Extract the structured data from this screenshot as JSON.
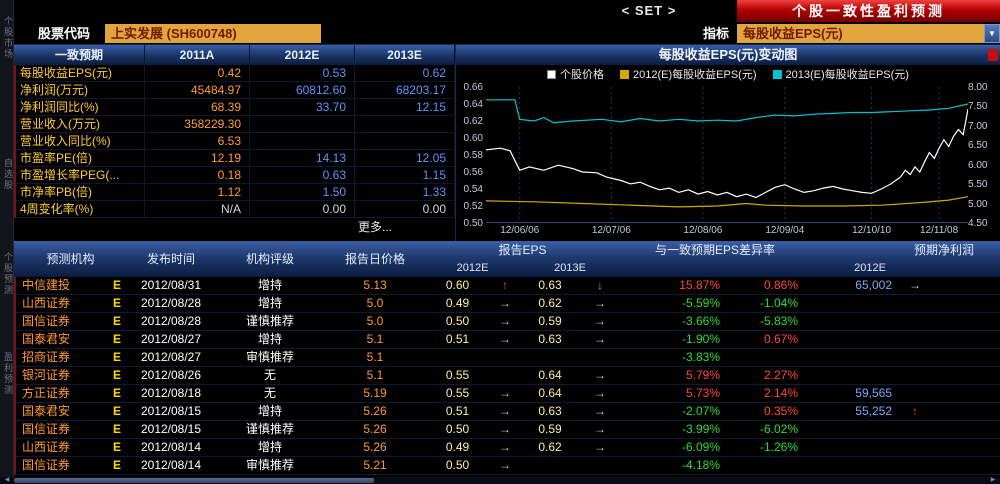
{
  "app": {
    "set_button": "< SET >",
    "banner_title": "个股一致性盈利预测"
  },
  "toolbar": {
    "stock_code_label": "股票代码",
    "stock_value": "上实发展 (SH600748)",
    "indicator_label": "指标",
    "indicator_value": "每股收益EPS(元)"
  },
  "sidebar": {
    "tabs": [
      "个股市场",
      "自选股",
      "个股预测",
      "盈利预测"
    ]
  },
  "consensus_table": {
    "title": "一致预期",
    "columns": [
      "2011A",
      "2012E",
      "2013E"
    ],
    "rows": [
      {
        "label": "每股收益EPS(元)",
        "a": "0.42",
        "e12": "0.53",
        "e13": "0.62"
      },
      {
        "label": "净利润(万元)",
        "a": "45484.97",
        "e12": "60812.60",
        "e13": "68203.17"
      },
      {
        "label": "净利润同比(%)",
        "a": "68.39",
        "e12": "33.70",
        "e13": "12.15"
      },
      {
        "label": "营业收入(万元)",
        "a": "358229.30",
        "e12": "",
        "e13": ""
      },
      {
        "label": "营业收入同比(%)",
        "a": "6.53",
        "e12": "",
        "e13": ""
      },
      {
        "label": "市盈率PE(倍)",
        "a": "12.19",
        "e12": "14.13",
        "e13": "12.05"
      },
      {
        "label": "市盈增长率PEG(...",
        "a": "0.18",
        "e12": "0.63",
        "e13": "1.15"
      },
      {
        "label": "市净率PB(倍)",
        "a": "1.12",
        "e12": "1.50",
        "e13": "1.33"
      },
      {
        "label": "4周变化率(%)",
        "a": "N/A",
        "e12": "0.00",
        "e13": "0.00"
      }
    ],
    "more_link": "更多..."
  },
  "chart": {
    "type": "line",
    "title": "每股收益EPS(元)变动图",
    "legend": [
      {
        "label": "个股价格",
        "color": "#ffffff"
      },
      {
        "label": "2012(E)每股收益EPS(元)",
        "color": "#d4a800"
      },
      {
        "label": "2013(E)每股收益EPS(元)",
        "color": "#00c4d4"
      }
    ],
    "y_left": [
      "0.66",
      "0.64",
      "0.62",
      "0.60",
      "0.58",
      "0.56",
      "0.54",
      "0.52",
      "0.50"
    ],
    "y_right": [
      "8.00",
      "7.50",
      "7.00",
      "6.50",
      "6.00",
      "5.50",
      "5.00",
      "4.50"
    ],
    "x_labels": [
      "12/06/06",
      "12/07/06",
      "12/08/06",
      "12/09/04",
      "12/10/10",
      "12/11/08"
    ],
    "series": [
      {
        "name": "2012(E)每股收益EPS(元)",
        "color": "#d4a800",
        "points": [
          [
            0,
            0.526
          ],
          [
            10,
            0.525
          ],
          [
            20,
            0.523
          ],
          [
            30,
            0.521
          ],
          [
            40,
            0.519
          ],
          [
            48,
            0.52
          ],
          [
            54,
            0.523
          ],
          [
            58,
            0.521
          ],
          [
            66,
            0.52
          ],
          [
            74,
            0.52
          ],
          [
            82,
            0.521
          ],
          [
            90,
            0.524
          ],
          [
            96,
            0.527
          ],
          [
            100,
            0.531
          ]
        ]
      },
      {
        "name": "2013(E)每股收益EPS(元)",
        "color": "#00c4d4",
        "points": [
          [
            0,
            0.645
          ],
          [
            6,
            0.645
          ],
          [
            7,
            0.622
          ],
          [
            10,
            0.62
          ],
          [
            12,
            0.624
          ],
          [
            14,
            0.618
          ],
          [
            18,
            0.62
          ],
          [
            24,
            0.622
          ],
          [
            28,
            0.619
          ],
          [
            32,
            0.623
          ],
          [
            36,
            0.62
          ],
          [
            40,
            0.622
          ],
          [
            44,
            0.62
          ],
          [
            48,
            0.621
          ],
          [
            52,
            0.62
          ],
          [
            56,
            0.624
          ],
          [
            60,
            0.627
          ],
          [
            64,
            0.626
          ],
          [
            68,
            0.628
          ],
          [
            72,
            0.629
          ],
          [
            76,
            0.63
          ],
          [
            80,
            0.63
          ],
          [
            84,
            0.631
          ],
          [
            88,
            0.632
          ],
          [
            92,
            0.633
          ],
          [
            96,
            0.635
          ],
          [
            100,
            0.64
          ]
        ]
      },
      {
        "name": "个股价格",
        "color": "#ffffff",
        "points": [
          [
            0,
            0.586
          ],
          [
            3,
            0.588
          ],
          [
            5,
            0.585
          ],
          [
            7,
            0.562
          ],
          [
            9,
            0.566
          ],
          [
            12,
            0.562
          ],
          [
            15,
            0.568
          ],
          [
            18,
            0.564
          ],
          [
            20,
            0.56
          ],
          [
            23,
            0.559
          ],
          [
            25,
            0.554
          ],
          [
            28,
            0.55
          ],
          [
            30,
            0.546
          ],
          [
            32,
            0.548
          ],
          [
            34,
            0.543
          ],
          [
            36,
            0.539
          ],
          [
            38,
            0.541
          ],
          [
            40,
            0.536
          ],
          [
            42,
            0.539
          ],
          [
            44,
            0.534
          ],
          [
            46,
            0.537
          ],
          [
            48,
            0.533
          ],
          [
            50,
            0.536
          ],
          [
            52,
            0.531
          ],
          [
            54,
            0.534
          ],
          [
            56,
            0.53
          ],
          [
            58,
            0.536
          ],
          [
            60,
            0.542
          ],
          [
            62,
            0.545
          ],
          [
            64,
            0.54
          ],
          [
            66,
            0.536
          ],
          [
            68,
            0.538
          ],
          [
            70,
            0.541
          ],
          [
            72,
            0.543
          ],
          [
            74,
            0.54
          ],
          [
            76,
            0.538
          ],
          [
            78,
            0.536
          ],
          [
            80,
            0.535
          ],
          [
            82,
            0.54
          ],
          [
            84,
            0.546
          ],
          [
            86,
            0.554
          ],
          [
            87,
            0.562
          ],
          [
            88,
            0.557
          ],
          [
            89,
            0.566
          ],
          [
            90,
            0.56
          ],
          [
            91,
            0.572
          ],
          [
            92,
            0.583
          ],
          [
            93,
            0.576
          ],
          [
            94,
            0.588
          ],
          [
            95,
            0.598
          ],
          [
            96,
            0.59
          ],
          [
            97,
            0.602
          ],
          [
            98,
            0.61
          ],
          [
            99,
            0.604
          ],
          [
            100,
            0.634
          ]
        ]
      }
    ]
  },
  "forecast_table": {
    "col_headers": [
      "预测机构",
      "发布时间",
      "机构评级",
      "报告日价格"
    ],
    "group_headers": [
      "报告EPS",
      "与一致预期EPS差异率",
      "预期净利润"
    ],
    "sub_headers": [
      "2012E",
      "2013E",
      "2012E"
    ],
    "rows": [
      {
        "org": "中信建投",
        "flag": "E",
        "date": "2012/08/31",
        "rating": "增持",
        "price": "5.13",
        "eps12": "0.60",
        "a12": "up",
        "eps13": "0.63",
        "a13": "down",
        "d12": "15.87%",
        "d13": "0.86%",
        "profit": "65,002",
        "parr": "right"
      },
      {
        "org": "山西证券",
        "flag": "E",
        "date": "2012/08/28",
        "rating": "增持",
        "price": "5.0",
        "eps12": "0.49",
        "a12": "right",
        "eps13": "0.62",
        "a13": "right",
        "d12": "-5.59%",
        "d13": "-1.04%",
        "profit": "",
        "parr": ""
      },
      {
        "org": "国信证券",
        "flag": "E",
        "date": "2012/08/28",
        "rating": "谨慎推荐",
        "price": "5.0",
        "eps12": "0.50",
        "a12": "right",
        "eps13": "0.59",
        "a13": "right",
        "d12": "-3.66%",
        "d13": "-5.83%",
        "profit": "",
        "parr": ""
      },
      {
        "org": "国泰君安",
        "flag": "E",
        "date": "2012/08/27",
        "rating": "增持",
        "price": "5.1",
        "eps12": "0.51",
        "a12": "right",
        "eps13": "0.63",
        "a13": "right",
        "d12": "-1.90%",
        "d13": "0.67%",
        "profit": "",
        "parr": ""
      },
      {
        "org": "招商证券",
        "flag": "E",
        "date": "2012/08/27",
        "rating": "审慎推荐",
        "price": "5.1",
        "eps12": "",
        "a12": "",
        "eps13": "",
        "a13": "",
        "d12": "-3.83%",
        "d13": "",
        "profit": "",
        "parr": ""
      },
      {
        "org": "银河证券",
        "flag": "E",
        "date": "2012/08/26",
        "rating": "无",
        "price": "5.1",
        "eps12": "0.55",
        "a12": "",
        "eps13": "0.64",
        "a13": "right",
        "d12": "5.79%",
        "d13": "2.27%",
        "profit": "",
        "parr": ""
      },
      {
        "org": "方正证券",
        "flag": "E",
        "date": "2012/08/18",
        "rating": "无",
        "price": "5.19",
        "eps12": "0.55",
        "a12": "right",
        "eps13": "0.64",
        "a13": "right",
        "d12": "5.73%",
        "d13": "2.14%",
        "profit": "59,565",
        "parr": ""
      },
      {
        "org": "国泰君安",
        "flag": "E",
        "date": "2012/08/15",
        "rating": "增持",
        "price": "5.26",
        "eps12": "0.51",
        "a12": "right",
        "eps13": "0.63",
        "a13": "right",
        "d12": "-2.07%",
        "d13": "0.35%",
        "profit": "55,252",
        "parr": "up"
      },
      {
        "org": "国信证券",
        "flag": "E",
        "date": "2012/08/15",
        "rating": "谨慎推荐",
        "price": "5.26",
        "eps12": "0.50",
        "a12": "right",
        "eps13": "0.59",
        "a13": "right",
        "d12": "-3.99%",
        "d13": "-6.02%",
        "profit": "",
        "parr": ""
      },
      {
        "org": "山西证券",
        "flag": "E",
        "date": "2012/08/14",
        "rating": "增持",
        "price": "5.26",
        "eps12": "0.49",
        "a12": "right",
        "eps13": "0.62",
        "a13": "right",
        "d12": "-6.09%",
        "d13": "-1.26%",
        "profit": "",
        "parr": ""
      },
      {
        "org": "国信证券",
        "flag": "E",
        "date": "2012/08/14",
        "rating": "审慎推荐",
        "price": "5.21",
        "eps12": "0.50",
        "a12": "right",
        "eps13": "",
        "a13": "",
        "d12": "-4.18%",
        "d13": "",
        "profit": "",
        "parr": ""
      }
    ]
  },
  "colors": {
    "banner_red": "#b40000",
    "accent_orange": "#e2a43c",
    "value_orange": "#ff9c2e",
    "value_blue": "#5e93ff",
    "up_red": "#ff4545",
    "down_green": "#2edc2e",
    "line_price": "#ffffff",
    "line_2012e": "#d4a800",
    "line_2013e": "#00c4d4"
  }
}
